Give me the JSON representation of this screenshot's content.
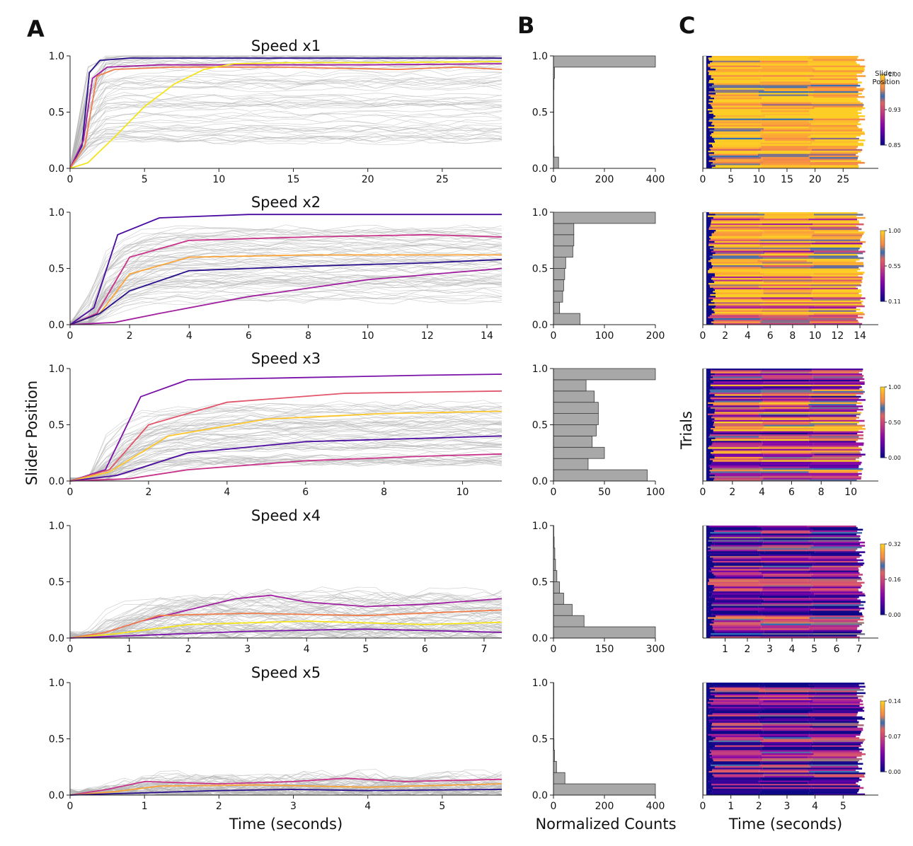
{
  "figure": {
    "panel_labels": [
      "A",
      "B",
      "C"
    ],
    "ylabel_A": "Slider Position",
    "xlabel_A": "Time (seconds)",
    "xlabel_B": "Normalized Counts",
    "ylabel_C": "Trials",
    "xlabel_C": "Time (seconds)",
    "colorbar_title": "Slider Position"
  },
  "colors": {
    "trace_gray": "#b4b4b4",
    "hist_fill": "#a8a8a8",
    "hist_edge": "#3a3a3a",
    "highlight_palette": [
      "#2a0f8a",
      "#4a0aa0",
      "#7a12a8",
      "#a01f9f",
      "#c8338a",
      "#e2566c",
      "#f07f4e",
      "#f9a43a",
      "#fdc62a",
      "#f5e31b"
    ],
    "colormap": [
      "#0d0887",
      "#3a049a",
      "#6a00a8",
      "#8f0da4",
      "#b12a90",
      "#cc4778",
      "#e16462",
      "#2f6fb6",
      "#f2844b",
      "#fca636",
      "#fcce25"
    ]
  },
  "chart_data": [
    {
      "type": "line",
      "panel": "A",
      "title": "Speed x1",
      "xlim": [
        0,
        29
      ],
      "ylim": [
        0,
        1
      ],
      "xticks": [
        0,
        5,
        10,
        15,
        20,
        25
      ],
      "yticks": [
        0.0,
        0.5,
        1.0
      ],
      "ytick_labels": [
        "0.0",
        "0.5",
        "1.0"
      ],
      "series": [
        {
          "name": "highlight 1",
          "x": [
            0,
            0.8,
            1.3,
            2,
            4,
            8,
            14,
            20,
            25,
            29
          ],
          "values": [
            0,
            0.2,
            0.85,
            0.96,
            0.98,
            0.98,
            0.98,
            0.98,
            0.98,
            0.98
          ]
        },
        {
          "name": "highlight 2",
          "x": [
            0,
            0.9,
            1.5,
            2.5,
            6,
            12,
            20,
            29
          ],
          "values": [
            0,
            0.25,
            0.8,
            0.9,
            0.92,
            0.92,
            0.92,
            0.93
          ]
        },
        {
          "name": "highlight 3",
          "x": [
            0,
            1,
            1.8,
            3,
            7,
            14,
            22,
            26,
            29
          ],
          "values": [
            0,
            0.2,
            0.82,
            0.88,
            0.9,
            0.9,
            0.88,
            0.9,
            0.88
          ]
        },
        {
          "name": "highlight 4",
          "x": [
            0,
            1.2,
            3,
            5,
            7,
            9,
            11,
            15,
            20,
            29
          ],
          "values": [
            0,
            0.05,
            0.28,
            0.55,
            0.75,
            0.88,
            0.93,
            0.94,
            0.94,
            0.95
          ]
        }
      ]
    },
    {
      "type": "line",
      "panel": "A",
      "title": "Speed x2",
      "xlim": [
        0,
        14.5
      ],
      "ylim": [
        0,
        1
      ],
      "xticks": [
        0,
        2,
        4,
        6,
        8,
        10,
        12,
        14
      ],
      "yticks": [
        0.0,
        0.5,
        1.0
      ],
      "ytick_labels": [
        "0.0",
        "0.5",
        "1.0"
      ],
      "series": [
        {
          "name": "highlight 1",
          "x": [
            0,
            0.8,
            1.6,
            3,
            6,
            10,
            14.5
          ],
          "values": [
            0,
            0.15,
            0.8,
            0.95,
            0.98,
            0.98,
            0.98
          ]
        },
        {
          "name": "highlight 2",
          "x": [
            0,
            0.9,
            2,
            4,
            8,
            12,
            14.5
          ],
          "values": [
            0,
            0.1,
            0.6,
            0.75,
            0.78,
            0.8,
            0.78
          ]
        },
        {
          "name": "highlight 3",
          "x": [
            0,
            1,
            2,
            4,
            8,
            12,
            14.5
          ],
          "values": [
            0,
            0.1,
            0.45,
            0.6,
            0.62,
            0.62,
            0.62
          ]
        },
        {
          "name": "highlight 4",
          "x": [
            0,
            1,
            2,
            4,
            8,
            12,
            14.5
          ],
          "values": [
            0,
            0.1,
            0.3,
            0.48,
            0.52,
            0.55,
            0.58
          ]
        },
        {
          "name": "highlight 5",
          "x": [
            0,
            1.5,
            3,
            6,
            10,
            14.5
          ],
          "values": [
            0,
            0.02,
            0.1,
            0.25,
            0.4,
            0.5
          ]
        }
      ]
    },
    {
      "type": "line",
      "panel": "A",
      "title": "Speed x3",
      "xlim": [
        0,
        11
      ],
      "ylim": [
        0,
        1
      ],
      "xticks": [
        0,
        2,
        4,
        6,
        8,
        10
      ],
      "yticks": [
        0.0,
        0.5,
        1.0
      ],
      "ytick_labels": [
        "0.0",
        "0.5",
        "1.0"
      ],
      "series": [
        {
          "name": "highlight 1",
          "x": [
            0,
            0.9,
            1.8,
            3,
            6,
            9,
            11
          ],
          "values": [
            0,
            0.1,
            0.75,
            0.9,
            0.92,
            0.94,
            0.95
          ]
        },
        {
          "name": "highlight 2",
          "x": [
            0,
            1,
            2,
            4,
            7,
            11
          ],
          "values": [
            0,
            0.1,
            0.5,
            0.7,
            0.78,
            0.8
          ]
        },
        {
          "name": "highlight 3",
          "x": [
            0,
            1,
            2.5,
            5,
            8,
            11
          ],
          "values": [
            0,
            0.08,
            0.4,
            0.55,
            0.6,
            0.62
          ]
        },
        {
          "name": "highlight 4",
          "x": [
            0,
            1.2,
            3,
            6,
            9,
            11
          ],
          "values": [
            0,
            0.05,
            0.25,
            0.35,
            0.38,
            0.4
          ]
        },
        {
          "name": "highlight 5",
          "x": [
            0,
            1.5,
            3,
            6,
            9,
            11
          ],
          "values": [
            0,
            0.02,
            0.1,
            0.18,
            0.22,
            0.24
          ]
        }
      ]
    },
    {
      "type": "line",
      "panel": "A",
      "title": "Speed x4",
      "xlim": [
        0,
        7.3
      ],
      "ylim": [
        0,
        1
      ],
      "xticks": [
        0,
        1,
        2,
        3,
        4,
        5,
        6,
        7
      ],
      "yticks": [
        0.0,
        0.5,
        1.0
      ],
      "ytick_labels": [
        "0.0",
        "0.5",
        "1.0"
      ],
      "series": [
        {
          "name": "highlight 1",
          "x": [
            0,
            0.6,
            1.2,
            2,
            2.8,
            3.4,
            4,
            5,
            6,
            7.3
          ],
          "values": [
            0,
            0.05,
            0.15,
            0.25,
            0.35,
            0.38,
            0.32,
            0.28,
            0.3,
            0.35
          ]
        },
        {
          "name": "highlight 2",
          "x": [
            0,
            0.6,
            1.5,
            3,
            5,
            7.3
          ],
          "values": [
            0,
            0.05,
            0.2,
            0.22,
            0.2,
            0.25
          ]
        },
        {
          "name": "highlight 3",
          "x": [
            0,
            0.8,
            2,
            4,
            6,
            7.3
          ],
          "values": [
            0,
            0.04,
            0.12,
            0.15,
            0.12,
            0.14
          ]
        },
        {
          "name": "highlight 4",
          "x": [
            0,
            1,
            3,
            5,
            7.3
          ],
          "values": [
            0,
            0.02,
            0.06,
            0.08,
            0.05
          ]
        }
      ]
    },
    {
      "type": "line",
      "panel": "A",
      "title": "Speed x5",
      "xlim": [
        0,
        5.8
      ],
      "ylim": [
        0,
        1
      ],
      "xticks": [
        0,
        1,
        2,
        3,
        4,
        5
      ],
      "yticks": [
        0.0,
        0.5,
        1.0
      ],
      "ytick_labels": [
        "0.0",
        "0.5",
        "1.0"
      ],
      "series": [
        {
          "name": "highlight 1",
          "x": [
            0,
            0.5,
            1,
            2,
            3,
            3.7,
            4.5,
            5.8
          ],
          "values": [
            0,
            0.05,
            0.12,
            0.1,
            0.12,
            0.15,
            0.12,
            0.14
          ]
        },
        {
          "name": "highlight 2",
          "x": [
            0,
            0.6,
            1.2,
            2.5,
            4,
            5.8
          ],
          "values": [
            0,
            0.03,
            0.08,
            0.09,
            0.07,
            0.1
          ]
        },
        {
          "name": "highlight 3",
          "x": [
            0,
            1,
            2,
            3,
            4,
            5.8
          ],
          "values": [
            0,
            0.02,
            0.04,
            0.05,
            0.04,
            0.05
          ]
        }
      ]
    },
    {
      "type": "bar",
      "panel": "B",
      "orientation": "horizontal",
      "title": "Speed x1",
      "bin_edges": [
        0.0,
        0.1,
        0.2,
        0.3,
        0.4,
        0.5,
        0.6,
        0.7,
        0.8,
        0.9,
        1.0
      ],
      "values": [
        20,
        2,
        1,
        1,
        1,
        1,
        1,
        2,
        4,
        400
      ],
      "xlim": [
        0,
        400
      ],
      "xticks": [
        0,
        200,
        400
      ],
      "ylim": [
        0,
        1
      ],
      "yticks": [
        0.0,
        0.5,
        1.0
      ],
      "ytick_labels": [
        "0.0",
        "0.5",
        "1.0"
      ]
    },
    {
      "type": "bar",
      "panel": "B",
      "orientation": "horizontal",
      "title": "Speed x2",
      "bin_edges": [
        0.0,
        0.1,
        0.2,
        0.3,
        0.4,
        0.5,
        0.6,
        0.7,
        0.8,
        0.9,
        1.0
      ],
      "values": [
        52,
        12,
        18,
        20,
        22,
        24,
        38,
        40,
        40,
        200
      ],
      "xlim": [
        0,
        200
      ],
      "xticks": [
        0,
        100,
        200
      ],
      "ylim": [
        0,
        1
      ],
      "yticks": [
        0.0,
        0.5,
        1.0
      ],
      "ytick_labels": [
        "0.0",
        "0.5",
        "1.0"
      ]
    },
    {
      "type": "bar",
      "panel": "B",
      "orientation": "horizontal",
      "title": "Speed x3",
      "bin_edges": [
        0.0,
        0.1,
        0.2,
        0.3,
        0.4,
        0.5,
        0.6,
        0.7,
        0.8,
        0.9,
        1.0
      ],
      "values": [
        92,
        34,
        50,
        38,
        42,
        44,
        44,
        40,
        32,
        100
      ],
      "xlim": [
        0,
        100
      ],
      "xticks": [
        0,
        50,
        100
      ],
      "ylim": [
        0,
        1
      ],
      "yticks": [
        0.0,
        0.5,
        1.0
      ],
      "ytick_labels": [
        "0.0",
        "0.5",
        "1.0"
      ]
    },
    {
      "type": "bar",
      "panel": "B",
      "orientation": "horizontal",
      "title": "Speed x4",
      "bin_edges": [
        0.0,
        0.1,
        0.2,
        0.3,
        0.4,
        0.5,
        0.6,
        0.7,
        0.8,
        0.9,
        1.0
      ],
      "values": [
        300,
        90,
        55,
        30,
        18,
        10,
        6,
        4,
        2,
        1
      ],
      "xlim": [
        0,
        300
      ],
      "xticks": [
        0,
        150,
        300
      ],
      "ylim": [
        0,
        1
      ],
      "yticks": [
        0.0,
        0.5,
        1.0
      ],
      "ytick_labels": [
        "0.0",
        "0.5",
        "1.0"
      ]
    },
    {
      "type": "bar",
      "panel": "B",
      "orientation": "horizontal",
      "title": "Speed x5",
      "bin_edges": [
        0.0,
        0.1,
        0.2,
        0.3,
        0.4,
        0.5,
        0.6,
        0.7,
        0.8,
        0.9,
        1.0
      ],
      "values": [
        400,
        45,
        12,
        4,
        2,
        1,
        1,
        1,
        1,
        1
      ],
      "xlim": [
        0,
        400
      ],
      "xticks": [
        0,
        200,
        400
      ],
      "ylim": [
        0,
        1
      ],
      "yticks": [
        0.0,
        0.5,
        1.0
      ],
      "ytick_labels": [
        "0.0",
        "0.5",
        "1.0"
      ]
    },
    {
      "type": "heatmap",
      "panel": "C",
      "title": "Speed x1",
      "xlim": [
        0,
        29
      ],
      "xticks": [
        0,
        5,
        10,
        15,
        20,
        25
      ],
      "colorbar_ticks": [
        "1.00",
        "0.93",
        "0.85"
      ],
      "value_range": [
        0.85,
        1.0
      ],
      "dominant_value": 1.0
    },
    {
      "type": "heatmap",
      "panel": "C",
      "title": "Speed x2",
      "xlim": [
        0,
        14.5
      ],
      "xticks": [
        0,
        2,
        4,
        6,
        8,
        10,
        12,
        14
      ],
      "colorbar_ticks": [
        "1.00",
        "0.55",
        "0.11"
      ],
      "value_range": [
        0.11,
        1.0
      ],
      "dominant_value": 0.9
    },
    {
      "type": "heatmap",
      "panel": "C",
      "title": "Speed x3",
      "xlim": [
        0,
        11
      ],
      "xticks": [
        0,
        2,
        4,
        6,
        8,
        10
      ],
      "colorbar_ticks": [
        "1.00",
        "0.50",
        "0.00"
      ],
      "value_range": [
        0.0,
        1.0
      ],
      "dominant_value": 0.55
    },
    {
      "type": "heatmap",
      "panel": "C",
      "title": "Speed x4",
      "xlim": [
        0,
        7.3
      ],
      "xticks": [
        1,
        2,
        3,
        4,
        5,
        6,
        7
      ],
      "colorbar_ticks": [
        "0.32",
        "0.16",
        "0.00"
      ],
      "value_range": [
        0.0,
        0.32
      ],
      "dominant_value": 0.08
    },
    {
      "type": "heatmap",
      "panel": "C",
      "title": "Speed x5",
      "xlim": [
        0,
        5.8
      ],
      "xticks": [
        0,
        1,
        2,
        3,
        4,
        5
      ],
      "colorbar_ticks": [
        "0.14",
        "0.07",
        "0.00"
      ],
      "value_range": [
        0.0,
        0.14
      ],
      "dominant_value": 0.03
    }
  ]
}
